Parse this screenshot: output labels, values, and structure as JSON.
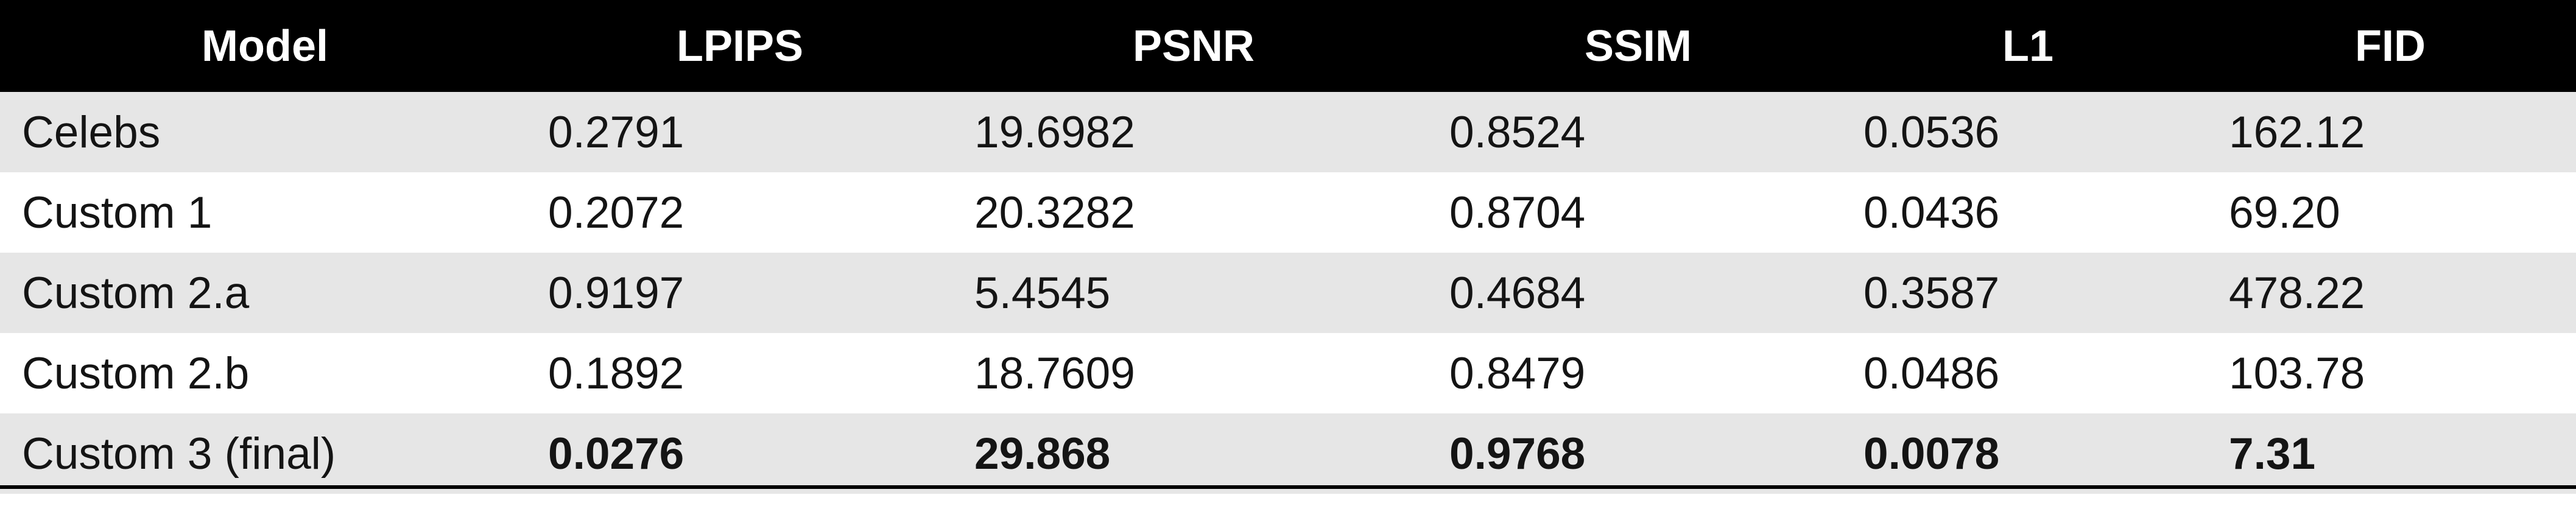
{
  "table": {
    "headers": [
      "Model",
      "LPIPS",
      "PSNR",
      "SSIM",
      "L1",
      "FID"
    ],
    "rows": [
      [
        "Celebs",
        "0.2791",
        "19.6982",
        "0.8524",
        "0.0536",
        "162.12"
      ],
      [
        "Custom 1",
        "0.2072",
        "20.3282",
        "0.8704",
        "0.0436",
        "69.20"
      ],
      [
        "Custom 2.a",
        "0.9197",
        "5.4545",
        "0.4684",
        "0.3587",
        "478.22"
      ],
      [
        "Custom 2.b",
        "0.1892",
        "18.7609",
        "0.8479",
        "0.0486",
        "103.78"
      ],
      [
        "Custom 3 (final)",
        "0.0276",
        "29.868",
        "0.9768",
        "0.0078",
        "7.31"
      ]
    ]
  },
  "colors": {
    "header_bg": "#000000",
    "header_text": "#ffffff",
    "shaded_row": "#e6e6e6",
    "plain_row": "#ffffff",
    "text": "#141414"
  }
}
